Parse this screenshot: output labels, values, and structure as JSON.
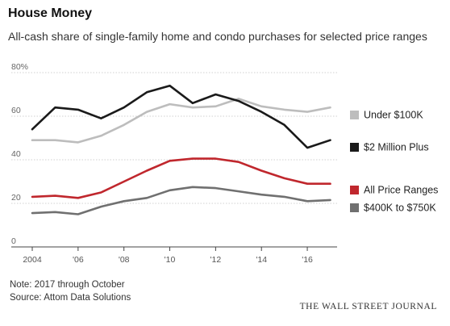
{
  "title": "House Money",
  "subtitle": "All-cash share of single-family home and condo purchases for selected price ranges",
  "note": "Note: 2017 through October",
  "source": "Source: Attom Data Solutions",
  "publisher": "THE WALL STREET JOURNAL",
  "chart_data": {
    "type": "line",
    "title": "House Money",
    "subtitle": "All-cash share of single-family home and condo purchases for selected price ranges",
    "x": [
      2004,
      2005,
      2006,
      2007,
      2008,
      2009,
      2010,
      2011,
      2012,
      2013,
      2014,
      2015,
      2016,
      2017
    ],
    "x_tick_values": [
      2004,
      2006,
      2008,
      2010,
      2012,
      2014,
      2016
    ],
    "x_tick_labels": [
      "2004",
      "'06",
      "'08",
      "'10",
      "'12",
      "'14",
      "'16"
    ],
    "xlim": [
      2004,
      2017.3
    ],
    "ylim": [
      0,
      80
    ],
    "y_tick_values": [
      0,
      20,
      40,
      60,
      80
    ],
    "y_tick_labels": [
      "0",
      "20",
      "40",
      "60",
      "80%"
    ],
    "grid": "horizontal",
    "legend": "right, labels at line ends",
    "series": [
      {
        "name": "Under $100K",
        "color": "#bdbdbd",
        "values": [
          49,
          49,
          48,
          51,
          56,
          62,
          65.5,
          64,
          64.5,
          68,
          64.5,
          63,
          62,
          64
        ]
      },
      {
        "name": "$2 Million Plus",
        "color": "#1a1a1a",
        "values": [
          54,
          64,
          63,
          59,
          64,
          71,
          74,
          66,
          70,
          67,
          62,
          56,
          45.5,
          49
        ]
      },
      {
        "name": "All Price Ranges",
        "color": "#c0272d",
        "values": [
          23,
          23.5,
          22.5,
          25,
          30,
          35,
          39.5,
          40.5,
          40.5,
          39,
          35,
          31.5,
          29,
          29
        ]
      },
      {
        "name": "$400K to $750K",
        "color": "#707070",
        "values": [
          15.5,
          16,
          15,
          18.5,
          21,
          22.5,
          26,
          27.5,
          27,
          25.5,
          24,
          23,
          21,
          21.5
        ]
      }
    ]
  }
}
